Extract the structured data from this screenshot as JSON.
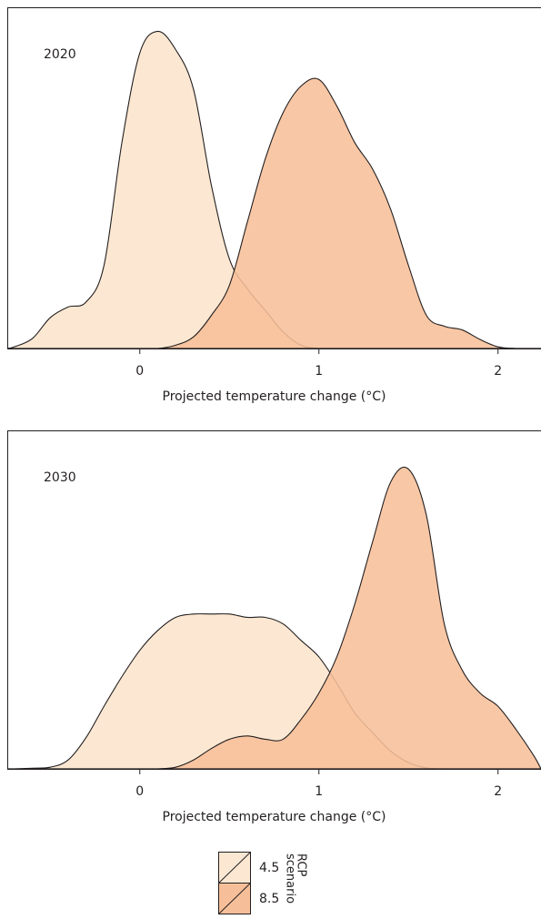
{
  "chart_data": [
    {
      "type": "density",
      "title": "2020",
      "xlabel": "Projected temperature change (°C)",
      "x": [
        -0.7,
        -0.6,
        -0.5,
        -0.4,
        -0.3,
        -0.2,
        -0.1,
        0,
        0.1,
        0.2,
        0.3,
        0.4,
        0.5,
        0.6,
        0.7,
        0.8,
        0.9,
        1.0,
        1.1,
        1.2,
        1.3,
        1.4,
        1.5,
        1.6,
        1.7,
        1.8,
        1.9,
        2.0,
        2.1,
        2.2
      ],
      "xlim": [
        -0.74,
        2.24
      ],
      "xticks": [
        0,
        1,
        2
      ],
      "ylim": [
        0,
        1
      ],
      "legend_title": [
        "RCP",
        "scenario"
      ],
      "series": [
        {
          "name": "4.5",
          "color": "#fce8d2",
          "values": [
            0.005,
            0.03,
            0.093,
            0.125,
            0.14,
            0.25,
            0.62,
            0.89,
            0.955,
            0.9,
            0.78,
            0.49,
            0.27,
            0.18,
            0.115,
            0.05,
            0.01,
            0,
            0,
            0,
            0,
            0,
            0,
            0,
            0,
            0,
            0,
            0,
            0,
            0
          ]
        },
        {
          "name": "8.5",
          "color": "#f7bf99",
          "values": [
            0,
            0,
            0,
            0,
            0,
            0,
            0,
            0,
            0,
            0.01,
            0.035,
            0.1,
            0.19,
            0.38,
            0.57,
            0.71,
            0.79,
            0.81,
            0.73,
            0.62,
            0.54,
            0.42,
            0.25,
            0.1,
            0.067,
            0.056,
            0.027,
            0.005,
            0,
            0
          ]
        }
      ]
    },
    {
      "type": "density",
      "title": "2030",
      "xlabel": "Projected temperature change (°C)",
      "x": [
        -0.7,
        -0.6,
        -0.5,
        -0.4,
        -0.3,
        -0.2,
        -0.1,
        0,
        0.1,
        0.2,
        0.3,
        0.4,
        0.5,
        0.6,
        0.7,
        0.8,
        0.9,
        1.0,
        1.1,
        1.2,
        1.3,
        1.4,
        1.5,
        1.6,
        1.7,
        1.8,
        1.9,
        2.0,
        2.1,
        2.2
      ],
      "xlim": [
        -0.74,
        2.24
      ],
      "xticks": [
        0,
        1,
        2
      ],
      "ylim": [
        0,
        1
      ],
      "series": [
        {
          "name": "4.5",
          "color": "#fce8d2",
          "values": [
            0,
            0.002,
            0.005,
            0.027,
            0.095,
            0.19,
            0.28,
            0.36,
            0.42,
            0.46,
            0.47,
            0.47,
            0.47,
            0.46,
            0.46,
            0.44,
            0.39,
            0.34,
            0.26,
            0.17,
            0.11,
            0.054,
            0.019,
            0.003,
            0,
            0,
            0,
            0,
            0,
            0
          ]
        },
        {
          "name": "8.5",
          "color": "#f7bf99",
          "values": [
            0,
            0,
            0,
            0,
            0,
            0,
            0,
            0,
            0,
            0.005,
            0.027,
            0.062,
            0.09,
            0.1,
            0.09,
            0.09,
            0.15,
            0.23,
            0.34,
            0.5,
            0.69,
            0.87,
            0.91,
            0.77,
            0.44,
            0.3,
            0.23,
            0.19,
            0.12,
            0.04
          ]
        }
      ]
    }
  ]
}
